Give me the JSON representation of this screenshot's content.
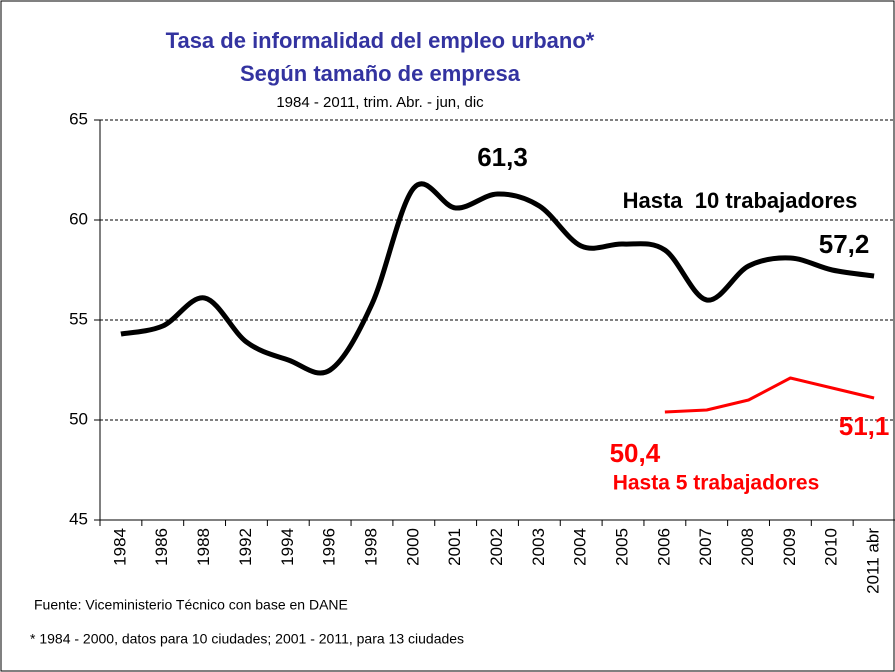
{
  "chart_data": {
    "type": "line",
    "title": "Tasa de informalidad del empleo urbano*",
    "subtitle": "Según tamaño de empresa",
    "period": "1984 - 2011, trim. Abr. - jun, dic",
    "source": "Fuente: Viceministerio Técnico con base en DANE",
    "footnote": "* 1984 - 2000, datos para 10 ciudades; 2001 - 2011,  para 13 ciudades",
    "categories": [
      "1984",
      "1986",
      "1988",
      "1992",
      "1994",
      "1996",
      "1998",
      "2000",
      "2001",
      "2002",
      "2003",
      "2004",
      "2005",
      "2006",
      "2007",
      "2008",
      "2009",
      "2010",
      "2011 abr"
    ],
    "series": [
      {
        "name": "Hasta  10 trabajadores",
        "color": "#000000",
        "values": [
          54.3,
          54.7,
          56.1,
          53.9,
          53.0,
          52.5,
          55.8,
          61.6,
          60.6,
          61.3,
          60.7,
          58.7,
          58.8,
          58.5,
          56.0,
          57.7,
          58.1,
          57.5,
          57.2
        ],
        "value_labels": [
          null,
          null,
          null,
          null,
          null,
          null,
          null,
          null,
          null,
          "61,3",
          null,
          null,
          null,
          null,
          null,
          null,
          null,
          null,
          "57,2"
        ]
      },
      {
        "name": "Hasta 5 trabajadores",
        "color": "#ff0000",
        "values": [
          null,
          null,
          null,
          null,
          null,
          null,
          null,
          null,
          null,
          null,
          null,
          null,
          null,
          50.4,
          50.5,
          51.0,
          52.1,
          51.6,
          51.1
        ],
        "value_labels": [
          null,
          null,
          null,
          null,
          null,
          null,
          null,
          null,
          null,
          null,
          null,
          null,
          null,
          "50,4",
          null,
          null,
          null,
          null,
          "51,1"
        ]
      }
    ],
    "ylim": [
      45,
      65
    ],
    "yticks": [
      45,
      50,
      55,
      60,
      65
    ],
    "grid": true
  }
}
